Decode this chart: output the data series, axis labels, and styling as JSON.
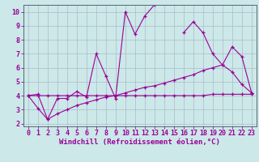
{
  "xlabel": "Windchill (Refroidissement éolien,°C)",
  "xlim": [
    -0.5,
    23.5
  ],
  "ylim": [
    1.8,
    10.5
  ],
  "xticks": [
    0,
    1,
    2,
    3,
    4,
    5,
    6,
    7,
    8,
    9,
    10,
    11,
    12,
    13,
    14,
    15,
    16,
    17,
    18,
    19,
    20,
    21,
    22,
    23
  ],
  "yticks": [
    2,
    3,
    4,
    5,
    6,
    7,
    8,
    9,
    10
  ],
  "background_color": "#cce8e8",
  "grid_color": "#aabbcc",
  "line_color": "#990099",
  "line1_y": [
    4.0,
    4.1,
    2.3,
    3.8,
    3.8,
    4.3,
    3.9,
    7.0,
    5.4,
    3.8,
    10.0,
    8.4,
    9.7,
    10.5,
    10.6,
    null,
    8.5,
    9.3,
    8.5,
    7.0,
    6.2,
    7.5,
    6.8,
    4.2
  ],
  "line2_y": [
    4.0,
    4.0,
    4.0,
    4.0,
    4.0,
    4.0,
    4.0,
    4.0,
    4.0,
    4.0,
    4.0,
    4.0,
    4.0,
    4.0,
    4.0,
    4.0,
    4.0,
    4.0,
    4.0,
    4.1,
    4.1,
    4.1,
    4.1,
    4.1
  ],
  "line3_y": [
    4.0,
    3.1,
    2.3,
    2.7,
    3.0,
    3.3,
    3.5,
    3.7,
    3.9,
    4.0,
    4.2,
    4.4,
    4.6,
    4.7,
    4.9,
    5.1,
    5.3,
    5.5,
    5.8,
    6.0,
    6.2,
    5.7,
    4.8,
    4.2
  ],
  "font_size_xlabel": 6.5,
  "font_size_ticks": 6.0
}
